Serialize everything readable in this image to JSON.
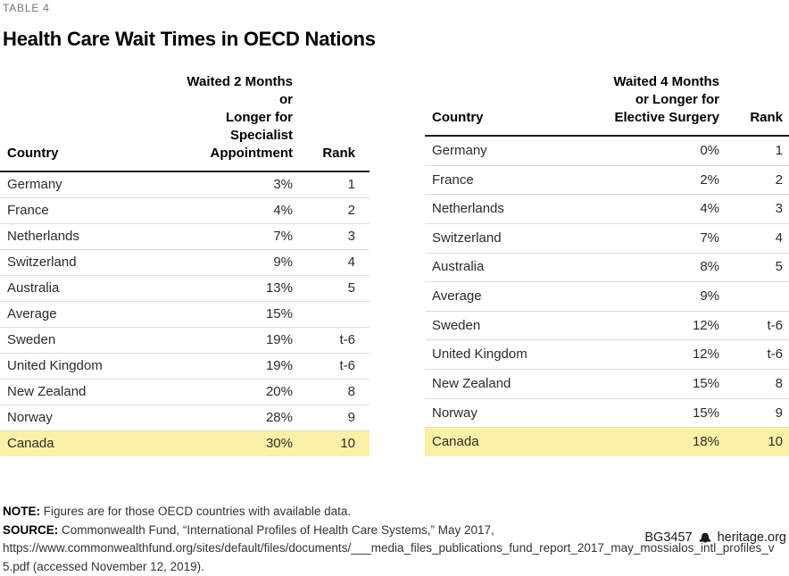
{
  "meta": {
    "table_label": "TABLE 4",
    "title": "Health Care Wait Times in OECD Nations"
  },
  "notes": {
    "note_label": "NOTE:",
    "note_text": " Figures are for those OECD countries with available data.",
    "source_label": "SOURCE:",
    "source_text": " Commonwealth Fund, “International Profiles of Health Care Systems,” May 2017, https://www.commonwealthfund.org/sites/default/files/documents/___media_files_publications_fund_report_2017_may_mossialos_intl_profiles_v5.pdf (accessed November 12, 2019)."
  },
  "footer": {
    "report_id": "BG3457",
    "bell_icon": "liberty-bell-icon",
    "site": "heritage.org"
  },
  "colors": {
    "highlight_yellow": "#FAF1A6",
    "header_rule": "#1a1a1a",
    "row_divider": "#dcdcdc",
    "label_gray": "#757575"
  },
  "chart_data": [
    {
      "type": "table",
      "title": "Waited 2 Months or Longer for Specialist Appointment",
      "columns": [
        "Country",
        "Waited 2 Months or\nLonger for Specialist\nAppointment",
        "Rank"
      ],
      "rows": [
        [
          "Germany",
          "3%",
          "1"
        ],
        [
          "France",
          "4%",
          "2"
        ],
        [
          "Netherlands",
          "7%",
          "3"
        ],
        [
          "Switzerland",
          "9%",
          "4"
        ],
        [
          "Australia",
          "13%",
          "5"
        ],
        [
          "Average",
          "15%",
          ""
        ],
        [
          "Sweden",
          "19%",
          "t-6"
        ],
        [
          "United Kingdom",
          "19%",
          "t-6"
        ],
        [
          "New Zealand",
          "20%",
          "8"
        ],
        [
          "Norway",
          "28%",
          "9"
        ],
        [
          "Canada",
          "30%",
          "10"
        ]
      ],
      "highlight_row": "Canada"
    },
    {
      "type": "table",
      "title": "Waited 4 Months or Longer for Elective Surgery",
      "columns": [
        "Country",
        "Waited 4 Months\nor Longer for\nElective Surgery",
        "Rank"
      ],
      "rows": [
        [
          "Germany",
          "0%",
          "1"
        ],
        [
          "France",
          "2%",
          "2"
        ],
        [
          "Netherlands",
          "4%",
          "3"
        ],
        [
          "Switzerland",
          "7%",
          "4"
        ],
        [
          "Australia",
          "8%",
          "5"
        ],
        [
          "Average",
          "9%",
          ""
        ],
        [
          "Sweden",
          "12%",
          "t-6"
        ],
        [
          "United Kingdom",
          "12%",
          "t-6"
        ],
        [
          "New Zealand",
          "15%",
          "8"
        ],
        [
          "Norway",
          "15%",
          "9"
        ],
        [
          "Canada",
          "18%",
          "10"
        ]
      ],
      "highlight_row": "Canada"
    }
  ]
}
